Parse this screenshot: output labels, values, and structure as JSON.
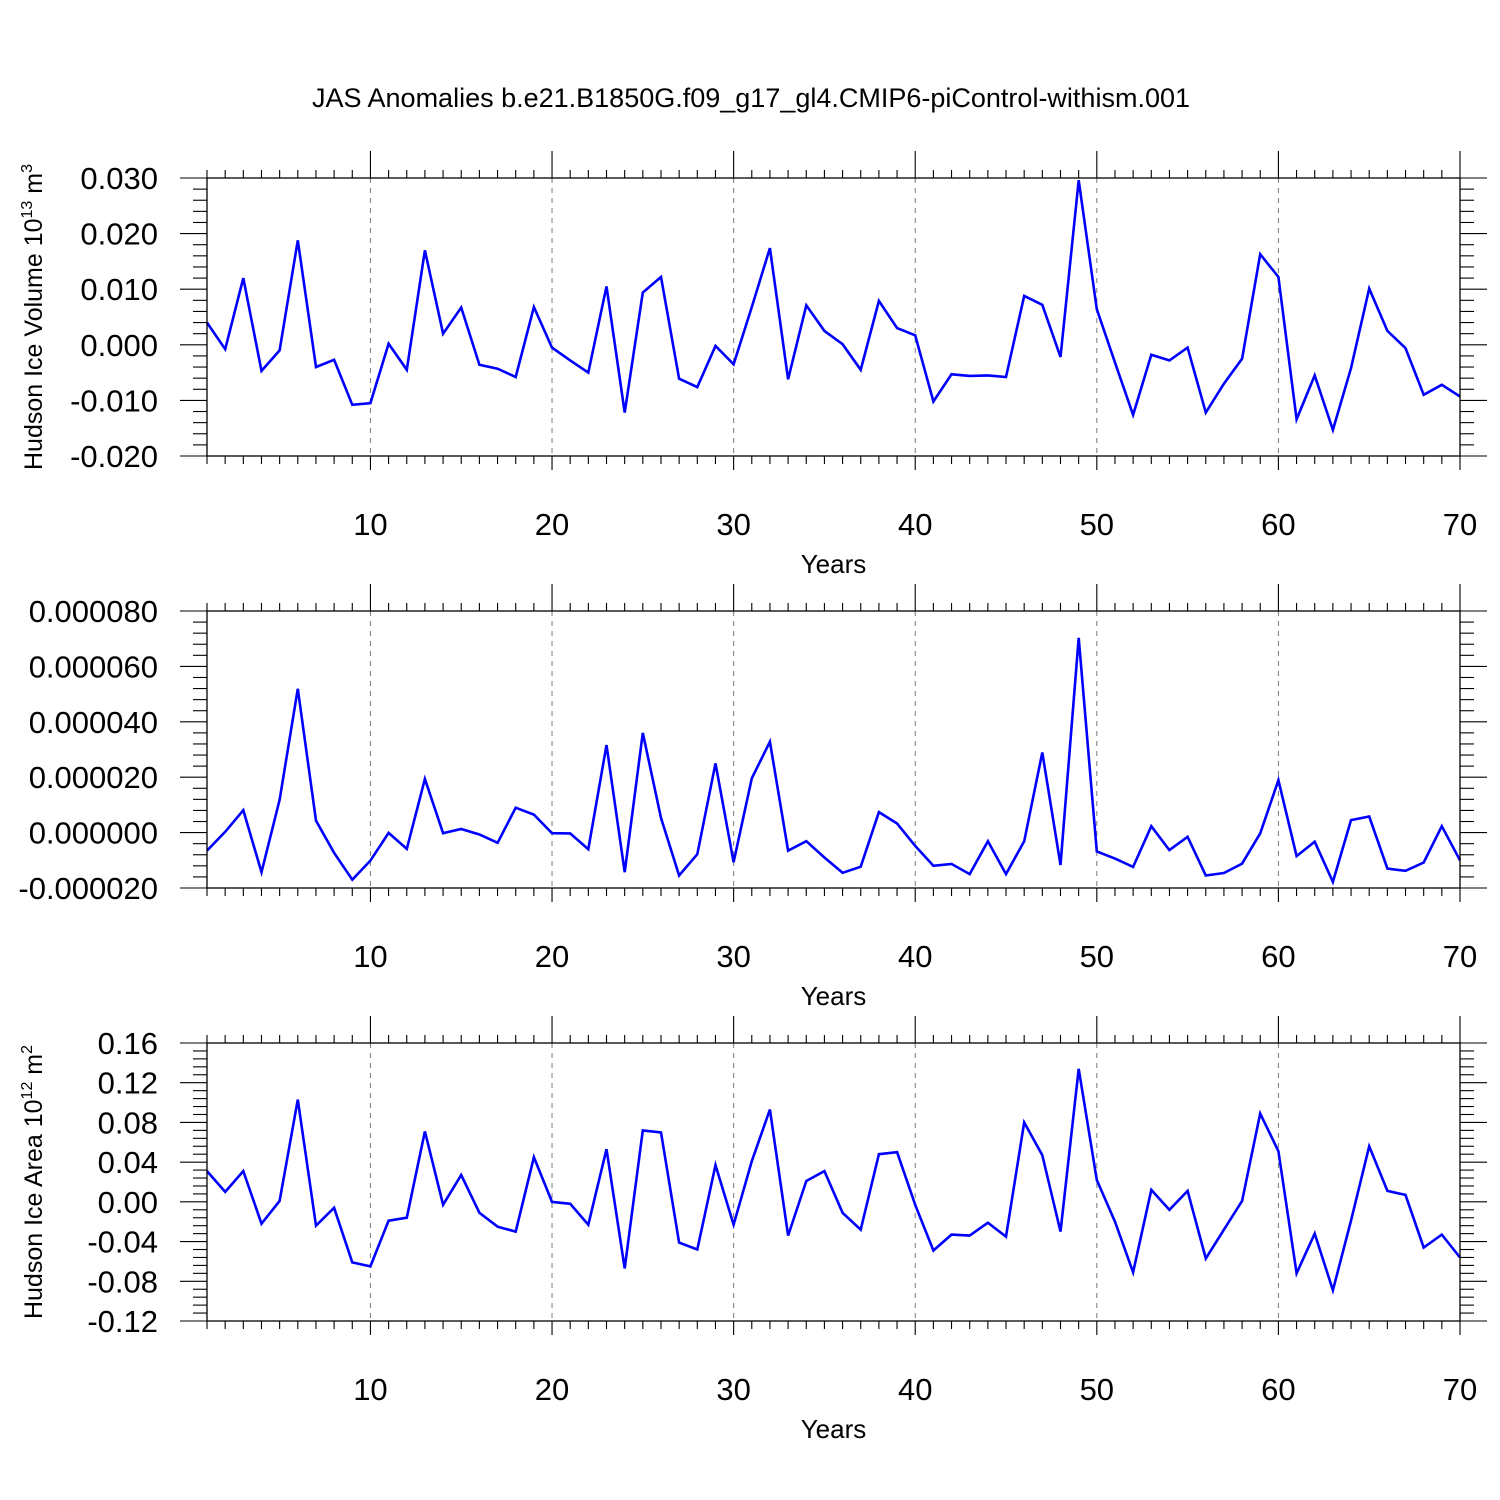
{
  "figure_title": "JAS Anomalies b.e21.B1850G.f09_g17_gl4.CMIP6-piControl-withism.001",
  "line_color": "#0000ff",
  "chart_data": [
    {
      "type": "line",
      "name": "hudson-ice-volume",
      "ylabel": "Hudson Ice Volume 10",
      "ylabel_exp": "13",
      "ylabel_unit": " m",
      "ylabel_unit_exp": "3",
      "xlabel": "Years",
      "xlim": [
        1,
        70
      ],
      "ylim": [
        -0.02,
        0.03
      ],
      "xticks": [
        10,
        20,
        30,
        40,
        50,
        60,
        70
      ],
      "xtick_labels": [
        "10",
        "20",
        "30",
        "40",
        "50",
        "60",
        "70"
      ],
      "yticks": [
        -0.02,
        -0.01,
        0.0,
        0.01,
        0.02,
        0.03
      ],
      "ytick_labels": [
        "-0.020",
        "-0.010",
        "0.000",
        "0.010",
        "0.020",
        "0.030"
      ],
      "x": [
        1,
        2,
        3,
        4,
        5,
        6,
        7,
        8,
        9,
        10,
        11,
        12,
        13,
        14,
        15,
        16,
        17,
        18,
        19,
        20,
        21,
        22,
        23,
        24,
        25,
        26,
        27,
        28,
        29,
        30,
        31,
        32,
        33,
        34,
        35,
        36,
        37,
        38,
        39,
        40,
        41,
        42,
        43,
        44,
        45,
        46,
        47,
        48,
        49,
        50,
        51,
        52,
        53,
        54,
        55,
        56,
        57,
        58,
        59,
        60,
        61,
        62,
        63,
        64,
        65,
        66,
        67,
        68,
        69,
        70
      ],
      "values": [
        0.004,
        -0.0008,
        0.012,
        -0.0047,
        -0.001,
        0.0188,
        -0.004,
        -0.0027,
        -0.0108,
        -0.0105,
        0.0002,
        -0.0045,
        0.017,
        0.002,
        0.0067,
        -0.0036,
        -0.0043,
        -0.0058,
        0.0068,
        -0.0005,
        -0.0028,
        -0.005,
        0.0105,
        -0.0122,
        0.0094,
        0.0122,
        -0.0061,
        -0.0076,
        -0.0002,
        -0.0035,
        0.0068,
        0.0174,
        -0.0062,
        0.0071,
        0.0025,
        0.0001,
        -0.0045,
        0.0079,
        0.003,
        0.0017,
        -0.0102,
        -0.0053,
        -0.0056,
        -0.0055,
        -0.0058,
        0.0088,
        0.0072,
        -0.0022,
        0.0296,
        0.0064,
        -0.0032,
        -0.0126,
        -0.0018,
        -0.0028,
        -0.0005,
        -0.0122,
        -0.007,
        -0.0025,
        0.0163,
        0.0122,
        -0.0134,
        -0.0055,
        -0.0153,
        -0.0042,
        0.0101,
        0.0025,
        -0.0006,
        -0.009,
        -0.0072,
        -0.0093
      ]
    },
    {
      "type": "line",
      "name": "middle-panel",
      "ylabel": "",
      "xlabel": "Years",
      "xlim": [
        1,
        70
      ],
      "ylim": [
        -2e-05,
        8e-05
      ],
      "xticks": [
        10,
        20,
        30,
        40,
        50,
        60,
        70
      ],
      "xtick_labels": [
        "10",
        "20",
        "30",
        "40",
        "50",
        "60",
        "70"
      ],
      "yticks": [
        -2e-05,
        0.0,
        2e-05,
        4e-05,
        6e-05,
        8e-05
      ],
      "ytick_labels": [
        "-0.000020",
        "0.000000",
        "0.000020",
        "0.000040",
        "0.000060",
        "0.000080"
      ],
      "x": [
        1,
        2,
        3,
        4,
        5,
        6,
        7,
        8,
        9,
        10,
        11,
        12,
        13,
        14,
        15,
        16,
        17,
        18,
        19,
        20,
        21,
        22,
        23,
        24,
        25,
        26,
        27,
        28,
        29,
        30,
        31,
        32,
        33,
        34,
        35,
        36,
        37,
        38,
        39,
        40,
        41,
        42,
        43,
        44,
        45,
        46,
        47,
        48,
        49,
        50,
        51,
        52,
        53,
        54,
        55,
        56,
        57,
        58,
        59,
        60,
        61,
        62,
        63,
        64,
        65,
        66,
        67,
        68,
        69,
        70
      ],
      "values": [
        -6.5e-06,
        3e-07,
        8.1e-06,
        -1.43e-05,
        1.18e-05,
        5.19e-05,
        4.3e-06,
        -7.3e-06,
        -1.7e-05,
        -1.01e-05,
        -1e-07,
        -5.9e-06,
        1.94e-05,
        -2e-07,
        1.3e-06,
        -7e-07,
        -3.7e-06,
        9e-06,
        6.5e-06,
        -2e-07,
        -3e-07,
        -6e-06,
        3.16e-05,
        -1.43e-05,
        3.6e-05,
        5.3e-06,
        -1.55e-05,
        -7.8e-06,
        2.5e-05,
        -1.07e-05,
        1.96e-05,
        3.28e-05,
        -6.5e-06,
        -3.1e-06,
        -9e-06,
        -1.45e-05,
        -1.23e-05,
        7.4e-06,
        3.3e-06,
        -4.8e-06,
        -1.2e-05,
        -1.13e-05,
        -1.5e-05,
        -3.1e-06,
        -1.5e-05,
        -3.1e-06,
        2.89e-05,
        -1.17e-05,
        7.03e-05,
        -6.8e-06,
        -9.4e-06,
        -1.24e-05,
        2.3e-06,
        -6.3e-06,
        -1.5e-06,
        -1.55e-05,
        -1.46e-05,
        -1.12e-05,
        -3e-07,
        1.89e-05,
        -8.5e-06,
        -3.3e-06,
        -1.78e-05,
        4.5e-06,
        5.8e-06,
        -1.3e-05,
        -1.38e-05,
        -1.08e-05,
        2.3e-06,
        -1e-05
      ]
    },
    {
      "type": "line",
      "name": "hudson-ice-area",
      "ylabel": "Hudson Ice Area 10",
      "ylabel_exp": "12",
      "ylabel_unit": " m",
      "ylabel_unit_exp": "2",
      "xlabel": "Years",
      "xlim": [
        1,
        70
      ],
      "ylim": [
        -0.12,
        0.16
      ],
      "xticks": [
        10,
        20,
        30,
        40,
        50,
        60,
        70
      ],
      "xtick_labels": [
        "10",
        "20",
        "30",
        "40",
        "50",
        "60",
        "70"
      ],
      "yticks": [
        -0.12,
        -0.08,
        -0.04,
        0.0,
        0.04,
        0.08,
        0.12,
        0.16
      ],
      "ytick_labels": [
        "-0.12",
        "-0.08",
        "-0.04",
        "0.00",
        "0.04",
        "0.08",
        "0.12",
        "0.16"
      ],
      "x": [
        1,
        2,
        3,
        4,
        5,
        6,
        7,
        8,
        9,
        10,
        11,
        12,
        13,
        14,
        15,
        16,
        17,
        18,
        19,
        20,
        21,
        22,
        23,
        24,
        25,
        26,
        27,
        28,
        29,
        30,
        31,
        32,
        33,
        34,
        35,
        36,
        37,
        38,
        39,
        40,
        41,
        42,
        43,
        44,
        45,
        46,
        47,
        48,
        49,
        50,
        51,
        52,
        53,
        54,
        55,
        56,
        57,
        58,
        59,
        60,
        61,
        62,
        63,
        64,
        65,
        66,
        67,
        68,
        69,
        70
      ],
      "values": [
        0.031,
        0.01,
        0.031,
        -0.022,
        0.001,
        0.103,
        -0.024,
        -0.006,
        -0.061,
        -0.065,
        -0.019,
        -0.016,
        0.071,
        -0.003,
        0.027,
        -0.011,
        -0.025,
        -0.03,
        0.045,
        0.0,
        -0.002,
        -0.023,
        0.053,
        -0.067,
        0.072,
        0.07,
        -0.041,
        -0.048,
        0.037,
        -0.023,
        0.041,
        0.093,
        -0.034,
        0.021,
        0.031,
        -0.011,
        -0.028,
        0.048,
        0.05,
        -0.003,
        -0.049,
        -0.033,
        -0.034,
        -0.021,
        -0.035,
        0.08,
        0.047,
        -0.03,
        0.134,
        0.022,
        -0.02,
        -0.071,
        0.012,
        -0.008,
        0.011,
        -0.057,
        -0.028,
        0.001,
        0.089,
        0.051,
        -0.072,
        -0.032,
        -0.089,
        -0.019,
        0.056,
        0.011,
        0.007,
        -0.046,
        -0.033,
        -0.056
      ]
    }
  ]
}
